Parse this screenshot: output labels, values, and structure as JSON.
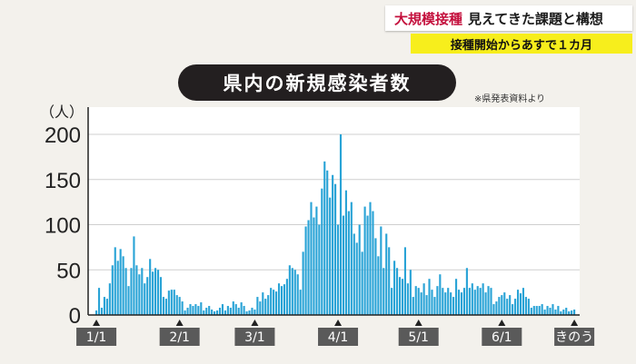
{
  "caption": {
    "tag": "大規模接種",
    "headline": "見えてきた課題と構想",
    "subline": "接種開始からあすで１カ月"
  },
  "chart_data": {
    "type": "bar",
    "title": "県内の新規感染者数",
    "source_note": "※県発表資料より",
    "ylabel": "（人）",
    "ylim": [
      0,
      200
    ],
    "yticks": [
      "0",
      "50",
      "100",
      "150",
      "200"
    ],
    "grid": true,
    "bar_color": "#29a3d6",
    "xtick_labels": [
      {
        "label": "1/1",
        "index": 0
      },
      {
        "label": "2/1",
        "index": 31
      },
      {
        "label": "3/1",
        "index": 59
      },
      {
        "label": "4/1",
        "index": 90
      },
      {
        "label": "5/1",
        "index": 120
      },
      {
        "label": "6/1",
        "index": 151
      },
      {
        "label": "きのう",
        "index": 178
      }
    ],
    "values": [
      5,
      30,
      8,
      20,
      18,
      35,
      55,
      75,
      60,
      73,
      65,
      52,
      32,
      52,
      87,
      55,
      45,
      52,
      35,
      42,
      62,
      48,
      52,
      50,
      42,
      20,
      18,
      27,
      28,
      28,
      22,
      20,
      15,
      5,
      8,
      12,
      10,
      12,
      10,
      14,
      5,
      8,
      10,
      6,
      4,
      5,
      8,
      12,
      5,
      10,
      8,
      15,
      12,
      8,
      14,
      10,
      4,
      5,
      8,
      6,
      20,
      15,
      25,
      18,
      22,
      30,
      28,
      26,
      35,
      32,
      34,
      40,
      55,
      52,
      50,
      45,
      28,
      70,
      98,
      105,
      125,
      108,
      120,
      100,
      140,
      170,
      160,
      130,
      155,
      145,
      100,
      200,
      110,
      138,
      115,
      125,
      90,
      80,
      100,
      70,
      120,
      110,
      125,
      115,
      85,
      65,
      98,
      52,
      90,
      75,
      30,
      60,
      52,
      42,
      40,
      75,
      35,
      50,
      20,
      32,
      30,
      25,
      35,
      22,
      40,
      28,
      20,
      32,
      45,
      30,
      25,
      30,
      25,
      20,
      40,
      28,
      25,
      30,
      52,
      30,
      35,
      28,
      32,
      30,
      35,
      25,
      32,
      30,
      12,
      15,
      20,
      22,
      25,
      18,
      22,
      12,
      18,
      28,
      24,
      30,
      20,
      18,
      8,
      10,
      10,
      10,
      12,
      6,
      10,
      8,
      12,
      6,
      10,
      4,
      6,
      8,
      4,
      5,
      6
    ]
  }
}
